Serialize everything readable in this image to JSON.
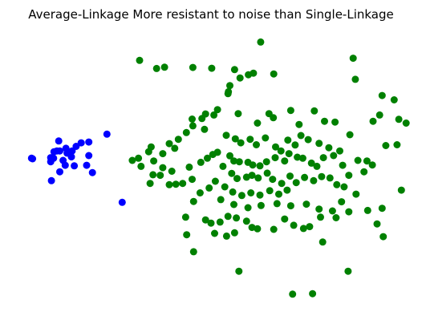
{
  "chart_data": {
    "type": "scatter",
    "title": "Average-Linkage More resistant to noise than Single-Linkage",
    "xlabel": "",
    "ylabel": "",
    "axes_visible": false,
    "grid": false,
    "legend": "none",
    "xlim": [
      0,
      100
    ],
    "ylim": [
      0,
      100
    ],
    "series": [
      {
        "color": "#0000ff",
        "points": [
          [
            0.5,
            54.8
          ],
          [
            21.3,
            63.7
          ],
          [
            16.3,
            60.8
          ],
          [
            10.3,
            56.7
          ],
          [
            5.8,
            53.5
          ],
          [
            8.0,
            61.2
          ],
          [
            12.8,
            59.2
          ],
          [
            14.2,
            60.5
          ],
          [
            11.7,
            57.5
          ],
          [
            10.0,
            58.5
          ],
          [
            8.3,
            57.5
          ],
          [
            7.5,
            57.5
          ],
          [
            6.7,
            57.2
          ],
          [
            5.8,
            55.0
          ],
          [
            6.6,
            54.8
          ],
          [
            9.2,
            54.0
          ],
          [
            11.5,
            55.3
          ],
          [
            12.3,
            52.0
          ],
          [
            9.8,
            52.2
          ],
          [
            16.3,
            55.8
          ],
          [
            15.7,
            52.2
          ],
          [
            17.3,
            49.5
          ],
          [
            8.3,
            49.8
          ],
          [
            6.0,
            46.5
          ],
          [
            0.8,
            54.6
          ],
          [
            25.5,
            38.5
          ]
        ]
      },
      {
        "color": "#008000",
        "points": [
          [
            30.3,
            91.0
          ],
          [
            37.2,
            88.5
          ],
          [
            45.0,
            88.4
          ],
          [
            50.2,
            88.1
          ],
          [
            56.5,
            87.6
          ],
          [
            58.0,
            84.5
          ],
          [
            60.3,
            85.7
          ],
          [
            61.7,
            86.3
          ],
          [
            55.2,
            81.7
          ],
          [
            54.8,
            79.4
          ],
          [
            54.7,
            78.7
          ],
          [
            63.7,
            97.8
          ],
          [
            89.2,
            91.8
          ],
          [
            89.8,
            84.0
          ],
          [
            97.2,
            78.0
          ],
          [
            100.5,
            76.4
          ],
          [
            51.8,
            72.8
          ],
          [
            50.8,
            70.8
          ],
          [
            57.5,
            71.3
          ],
          [
            62.8,
            67.8
          ],
          [
            66.0,
            71.3
          ],
          [
            67.2,
            69.8
          ],
          [
            72.0,
            72.5
          ],
          [
            74.3,
            67.3
          ],
          [
            74.8,
            63.2
          ],
          [
            78.5,
            72.3
          ],
          [
            81.3,
            68.5
          ],
          [
            84.2,
            68.2
          ],
          [
            88.3,
            63.5
          ],
          [
            94.7,
            68.5
          ],
          [
            96.5,
            70.8
          ],
          [
            101.8,
            69.2
          ],
          [
            103.8,
            67.8
          ],
          [
            98.2,
            59.5
          ],
          [
            101.3,
            59.8
          ],
          [
            93.0,
            53.8
          ],
          [
            102.5,
            43.0
          ],
          [
            48.5,
            71.2
          ],
          [
            47.5,
            69.5
          ],
          [
            44.8,
            69.3
          ],
          [
            45.0,
            66.8
          ],
          [
            48.2,
            65.5
          ],
          [
            43.2,
            64.3
          ],
          [
            41.0,
            61.8
          ],
          [
            38.5,
            60.2
          ],
          [
            33.5,
            59.0
          ],
          [
            32.8,
            57.2
          ],
          [
            40.0,
            58.5
          ],
          [
            36.7,
            56.5
          ],
          [
            30.0,
            54.8
          ],
          [
            28.3,
            54.0
          ],
          [
            34.2,
            53.8
          ],
          [
            36.7,
            51.3
          ],
          [
            39.2,
            50.0
          ],
          [
            44.0,
            51.5
          ],
          [
            47.2,
            53.3
          ],
          [
            49.0,
            54.8
          ],
          [
            50.5,
            56.2
          ],
          [
            51.8,
            57.0
          ],
          [
            55.2,
            55.7
          ],
          [
            56.3,
            53.8
          ],
          [
            57.8,
            53.5
          ],
          [
            60.2,
            53.3
          ],
          [
            61.5,
            52.3
          ],
          [
            63.5,
            52.0
          ],
          [
            65.3,
            53.5
          ],
          [
            67.7,
            55.0
          ],
          [
            70.3,
            53.8
          ],
          [
            71.5,
            56.5
          ],
          [
            73.8,
            55.2
          ],
          [
            75.3,
            54.8
          ],
          [
            77.7,
            53.0
          ],
          [
            79.2,
            51.8
          ],
          [
            81.0,
            55.0
          ],
          [
            83.8,
            55.8
          ],
          [
            86.3,
            52.2
          ],
          [
            88.0,
            48.5
          ],
          [
            90.5,
            54.0
          ],
          [
            92.2,
            49.8
          ],
          [
            94.5,
            52.3
          ],
          [
            54.2,
            63.3
          ],
          [
            56.7,
            62.0
          ],
          [
            58.2,
            60.5
          ],
          [
            60.8,
            61.8
          ],
          [
            62.5,
            59.8
          ],
          [
            65.0,
            62.3
          ],
          [
            67.8,
            59.0
          ],
          [
            69.3,
            57.5
          ],
          [
            71.2,
            61.5
          ],
          [
            73.2,
            59.7
          ],
          [
            76.8,
            61.7
          ],
          [
            79.8,
            60.3
          ],
          [
            82.5,
            58.7
          ],
          [
            85.5,
            57.5
          ],
          [
            53.3,
            51.8
          ],
          [
            55.7,
            49.2
          ],
          [
            57.2,
            47.3
          ],
          [
            59.8,
            47.8
          ],
          [
            61.3,
            48.5
          ],
          [
            63.0,
            47.5
          ],
          [
            65.5,
            49.3
          ],
          [
            67.0,
            47.0
          ],
          [
            69.5,
            45.5
          ],
          [
            71.8,
            48.2
          ],
          [
            73.5,
            45.8
          ],
          [
            75.8,
            47.7
          ],
          [
            78.3,
            46.5
          ],
          [
            80.5,
            48.0
          ],
          [
            82.8,
            47.5
          ],
          [
            84.7,
            45.0
          ],
          [
            86.7,
            44.2
          ],
          [
            51.2,
            46.3
          ],
          [
            53.8,
            44.2
          ],
          [
            56.0,
            42.3
          ],
          [
            58.5,
            41.0
          ],
          [
            61.0,
            42.0
          ],
          [
            63.5,
            41.2
          ],
          [
            66.2,
            42.8
          ],
          [
            68.7,
            41.5
          ],
          [
            71.0,
            43.0
          ],
          [
            44.8,
            47.0
          ],
          [
            42.2,
            45.5
          ],
          [
            40.3,
            45.2
          ],
          [
            38.5,
            45.0
          ],
          [
            36.0,
            48.5
          ],
          [
            49.5,
            43.8
          ],
          [
            47.0,
            42.0
          ],
          [
            45.2,
            38.8
          ],
          [
            52.7,
            39.5
          ],
          [
            56.3,
            37.7
          ],
          [
            60.2,
            36.5
          ],
          [
            63.8,
            37.3
          ],
          [
            68.2,
            38.0
          ],
          [
            72.0,
            37.2
          ],
          [
            76.3,
            37.8
          ],
          [
            79.8,
            36.0
          ],
          [
            83.5,
            35.3
          ],
          [
            86.0,
            38.7
          ],
          [
            90.0,
            41.5
          ],
          [
            93.2,
            35.5
          ],
          [
            97.2,
            36.3
          ],
          [
            34.0,
            48.7
          ],
          [
            30.7,
            51.8
          ],
          [
            33.2,
            45.5
          ],
          [
            43.0,
            33.0
          ],
          [
            48.5,
            32.0
          ],
          [
            50.0,
            30.8
          ],
          [
            52.5,
            31.2
          ],
          [
            54.7,
            33.3
          ],
          [
            57.0,
            32.7
          ],
          [
            59.8,
            31.5
          ],
          [
            61.3,
            29.2
          ],
          [
            62.8,
            28.7
          ],
          [
            67.3,
            28.5
          ],
          [
            70.3,
            32.3
          ],
          [
            72.8,
            30.0
          ],
          [
            75.5,
            28.8
          ],
          [
            77.2,
            29.5
          ],
          [
            80.2,
            33.0
          ],
          [
            84.5,
            32.8
          ],
          [
            88.0,
            35.0
          ],
          [
            95.8,
            30.5
          ],
          [
            51.0,
            27.0
          ],
          [
            54.3,
            26.0
          ],
          [
            56.5,
            27.2
          ],
          [
            43.3,
            26.5
          ],
          [
            80.8,
            23.8
          ],
          [
            97.5,
            25.8
          ],
          [
            45.2,
            20.2
          ],
          [
            87.8,
            13.0
          ],
          [
            57.7,
            13.0
          ],
          [
            72.5,
            4.5
          ],
          [
            78.0,
            4.7
          ],
          [
            35.0,
            88.0
          ],
          [
            67.3,
            86.0
          ]
        ]
      }
    ]
  }
}
